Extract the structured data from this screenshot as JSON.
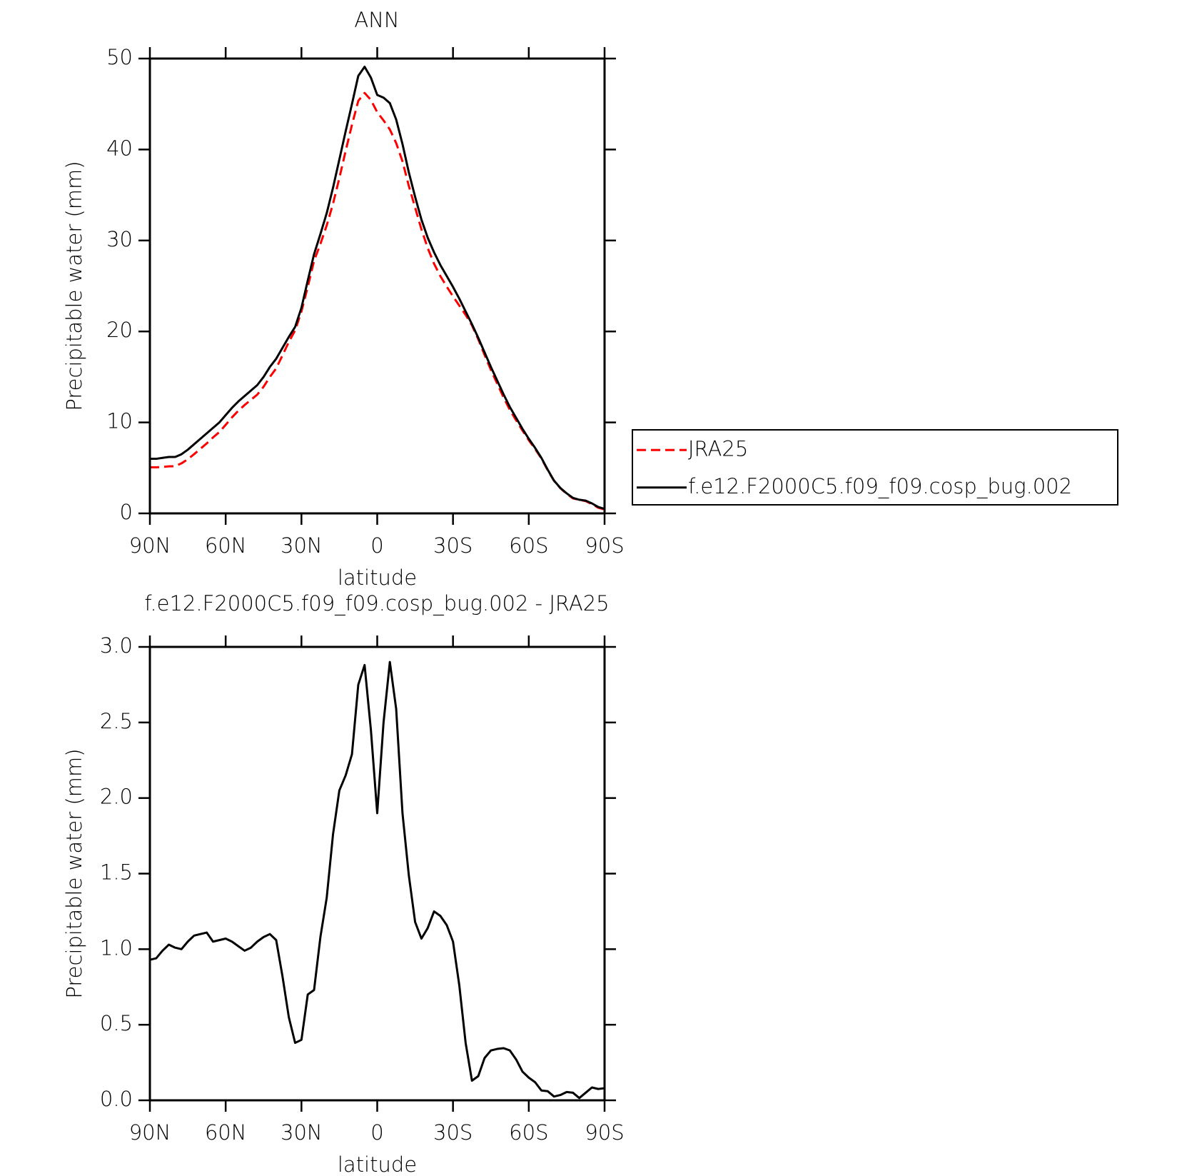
{
  "chart_data": [
    {
      "type": "line",
      "title": "ANN",
      "xlabel": "latitude",
      "ylabel": "Precipitable water (mm)",
      "x": [
        90,
        87.5,
        85,
        82.5,
        80,
        77.5,
        75,
        72.5,
        70,
        67.5,
        65,
        62.5,
        60,
        57.5,
        55,
        52.5,
        50,
        47.5,
        45,
        42.5,
        40,
        37.5,
        35,
        32.5,
        30,
        27.5,
        25,
        22.5,
        20,
        17.5,
        15,
        12.5,
        10,
        7.5,
        5,
        2.5,
        0,
        -2.5,
        -5,
        -7.5,
        -10,
        -12.5,
        -15,
        -17.5,
        -20,
        -22.5,
        -25,
        -27.5,
        -30,
        -32.5,
        -35,
        -37.5,
        -40,
        -42.5,
        -45,
        -47.5,
        -50,
        -52.5,
        -55,
        -57.5,
        -60,
        -62.5,
        -65,
        -67.5,
        -70,
        -72.5,
        -75,
        -77.5,
        -80,
        -82.5,
        -85,
        -87.5,
        -90
      ],
      "xlim": [
        90,
        -90
      ],
      "xticks": [
        {
          "value": 90,
          "label": "90N"
        },
        {
          "value": 60,
          "label": "60N"
        },
        {
          "value": 30,
          "label": "30N"
        },
        0,
        {
          "value": -30,
          "label": "30S"
        },
        {
          "value": -60,
          "label": "60S"
        },
        {
          "value": -90,
          "label": "90S"
        }
      ],
      "ylim": [
        0,
        50
      ],
      "yticks": [
        0,
        10,
        20,
        30,
        40,
        50
      ],
      "legend": "right",
      "series": [
        {
          "name": "JRA25",
          "color": "#ff0000",
          "dash": true,
          "values": [
            5.07,
            5.06,
            5.11,
            5.17,
            5.19,
            5.5,
            5.95,
            6.51,
            7.1,
            7.69,
            8.35,
            8.94,
            9.73,
            10.55,
            11.28,
            11.91,
            12.49,
            13.05,
            13.92,
            15.0,
            15.94,
            17.38,
            18.85,
            20.12,
            22.2,
            24.9,
            27.77,
            29.62,
            31.66,
            34.04,
            36.85,
            39.85,
            42.71,
            45.35,
            46.22,
            45.45,
            44.1,
            43.2,
            42.2,
            40.71,
            38.7,
            36.01,
            33.62,
            31.23,
            29.16,
            27.45,
            26.08,
            24.94,
            23.85,
            22.84,
            21.82,
            20.67,
            19.14,
            17.42,
            15.77,
            14.26,
            12.755,
            11.37,
            10.23,
            9.11,
            8.05,
            7.08,
            6.035,
            4.74,
            3.575,
            2.765,
            2.145,
            1.65,
            1.485,
            1.35,
            1.015,
            0.625,
            0.42
          ]
        },
        {
          "name": "f.e12.F2000C5.f09_f09.cosp_bug.002",
          "color": "#000000",
          "dash": false,
          "values": [
            6.0,
            6.0,
            6.1,
            6.2,
            6.2,
            6.5,
            7.0,
            7.6,
            8.2,
            8.8,
            9.4,
            10.0,
            10.8,
            11.6,
            12.3,
            12.9,
            13.5,
            14.1,
            15.0,
            16.1,
            17.0,
            18.2,
            19.4,
            20.5,
            22.6,
            25.6,
            28.5,
            30.7,
            33.0,
            35.8,
            38.9,
            42.0,
            45.0,
            48.1,
            49.1,
            47.9,
            46.0,
            45.7,
            45.1,
            43.3,
            40.6,
            37.5,
            34.8,
            32.3,
            30.3,
            28.7,
            27.3,
            26.1,
            24.9,
            23.6,
            22.2,
            20.8,
            19.3,
            17.7,
            16.1,
            14.6,
            13.1,
            11.7,
            10.5,
            9.3,
            8.2,
            7.2,
            6.1,
            4.8,
            3.6,
            2.8,
            2.2,
            1.7,
            1.5,
            1.4,
            1.1,
            0.7,
            0.5
          ]
        }
      ]
    },
    {
      "type": "line",
      "title": "f.e12.F2000C5.f09_f09.cosp_bug.002 - JRA25",
      "xlabel": "latitude",
      "ylabel": "Precipitable water (mm)",
      "x": [
        90,
        87.5,
        85,
        82.5,
        80,
        77.5,
        75,
        72.5,
        70,
        67.5,
        65,
        62.5,
        60,
        57.5,
        55,
        52.5,
        50,
        47.5,
        45,
        42.5,
        40,
        37.5,
        35,
        32.5,
        30,
        27.5,
        25,
        22.5,
        20,
        17.5,
        15,
        12.5,
        10,
        7.5,
        5,
        2.5,
        0,
        -2.5,
        -5,
        -7.5,
        -10,
        -12.5,
        -15,
        -17.5,
        -20,
        -22.5,
        -25,
        -27.5,
        -30,
        -32.5,
        -35,
        -37.5,
        -40,
        -42.5,
        -45,
        -47.5,
        -50,
        -52.5,
        -55,
        -57.5,
        -60,
        -62.5,
        -65,
        -67.5,
        -70,
        -72.5,
        -75,
        -77.5,
        -80,
        -82.5,
        -85,
        -87.5,
        -90
      ],
      "xlim": [
        90,
        -90
      ],
      "xticks": [
        {
          "value": 90,
          "label": "90N"
        },
        {
          "value": 60,
          "label": "60N"
        },
        {
          "value": 30,
          "label": "30N"
        },
        0,
        {
          "value": -30,
          "label": "30S"
        },
        {
          "value": -60,
          "label": "60S"
        },
        {
          "value": -90,
          "label": "90S"
        }
      ],
      "ylim": [
        0,
        3
      ],
      "yticks": [
        {
          "value": 0,
          "label": "0.0"
        },
        0.5,
        {
          "value": 1,
          "label": "1.0"
        },
        1.5,
        {
          "value": 2,
          "label": "2.0"
        },
        2.5,
        {
          "value": 3,
          "label": "3.0"
        }
      ],
      "series": [
        {
          "color": "#000000",
          "dash": false,
          "values": [
            0.93,
            0.94,
            0.99,
            1.03,
            1.01,
            1.0,
            1.05,
            1.09,
            1.1,
            1.11,
            1.05,
            1.06,
            1.07,
            1.05,
            1.02,
            0.99,
            1.01,
            1.05,
            1.08,
            1.1,
            1.06,
            0.82,
            0.55,
            0.38,
            0.4,
            0.7,
            0.73,
            1.08,
            1.34,
            1.76,
            2.05,
            2.15,
            2.29,
            2.75,
            2.88,
            2.45,
            1.9,
            2.5,
            2.9,
            2.59,
            1.9,
            1.49,
            1.18,
            1.07,
            1.14,
            1.25,
            1.22,
            1.16,
            1.05,
            0.76,
            0.38,
            0.13,
            0.16,
            0.28,
            0.33,
            0.34,
            0.345,
            0.33,
            0.27,
            0.19,
            0.15,
            0.12,
            0.065,
            0.06,
            0.025,
            0.035,
            0.055,
            0.05,
            0.015,
            0.05,
            0.085,
            0.075,
            0.08
          ]
        }
      ]
    }
  ]
}
